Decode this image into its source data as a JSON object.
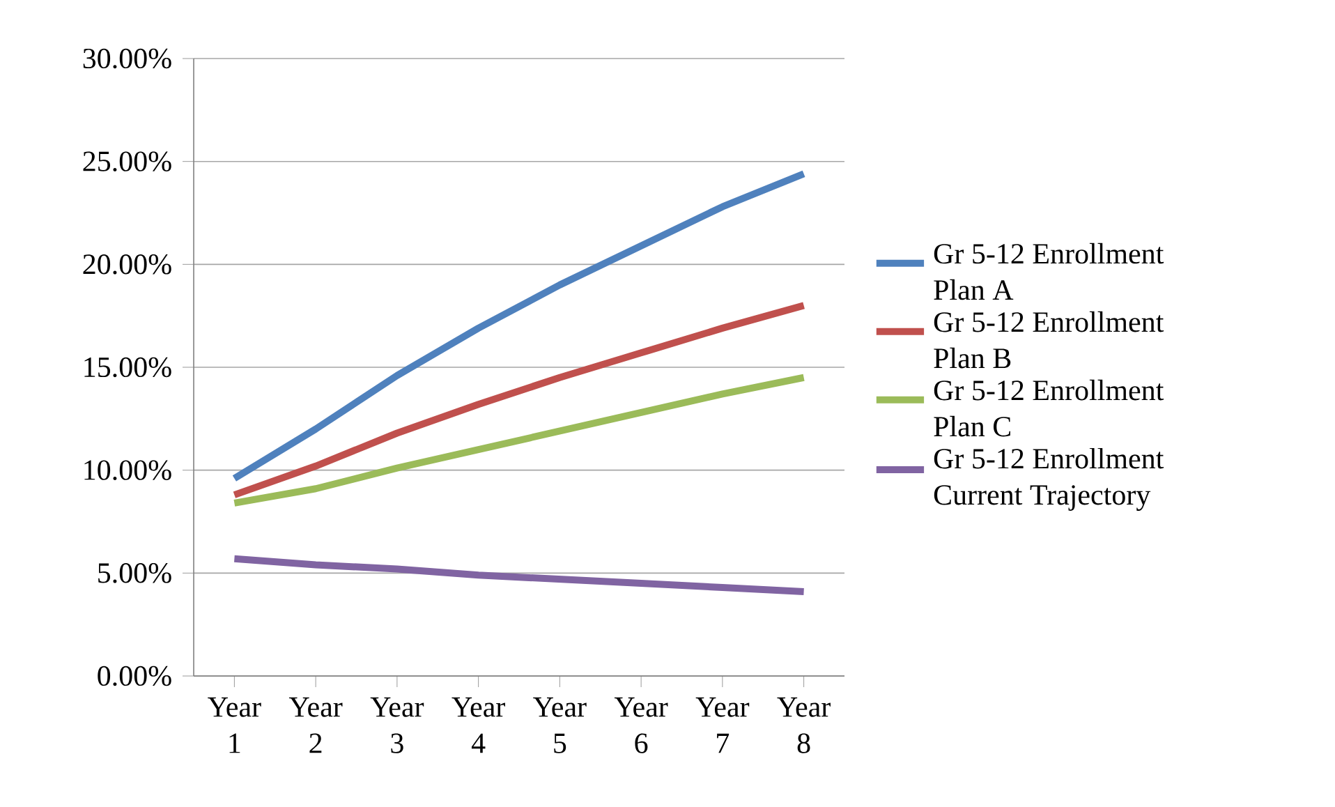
{
  "chart_data": {
    "type": "line",
    "categories": [
      "Year 1",
      "Year 2",
      "Year 3",
      "Year 4",
      "Year 5",
      "Year 6",
      "Year 7",
      "Year 8"
    ],
    "series": [
      {
        "name": "Gr 5-12 Enrollment Plan A",
        "color": "#4f81bd",
        "values": [
          9.6,
          12.0,
          14.6,
          16.9,
          19.0,
          20.9,
          22.8,
          24.4
        ]
      },
      {
        "name": "Gr 5-12 Enrollment Plan B",
        "color": "#c0504d",
        "values": [
          8.8,
          10.2,
          11.8,
          13.2,
          14.5,
          15.7,
          16.9,
          18.0
        ]
      },
      {
        "name": "Gr 5-12 Enrollment Plan C",
        "color": "#9bbb59",
        "values": [
          8.4,
          9.1,
          10.1,
          11.0,
          11.9,
          12.8,
          13.7,
          14.5
        ]
      },
      {
        "name": "Gr 5-12 Enrollment Current Trajectory",
        "color": "#8064a2",
        "values": [
          5.7,
          5.4,
          5.2,
          4.9,
          4.7,
          4.5,
          4.3,
          4.1
        ]
      }
    ],
    "ylim": [
      0,
      30
    ],
    "yticks": [
      {
        "value": 0,
        "label": "0.00%"
      },
      {
        "value": 5,
        "label": "5.00%"
      },
      {
        "value": 10,
        "label": "10.00%"
      },
      {
        "value": 15,
        "label": "15.00%"
      },
      {
        "value": 20,
        "label": "20.00%"
      },
      {
        "value": 25,
        "label": "25.00%"
      },
      {
        "value": 30,
        "label": "30.00%"
      }
    ],
    "grid": "y",
    "legend": "right",
    "marker": "none",
    "line_style": "solid"
  }
}
